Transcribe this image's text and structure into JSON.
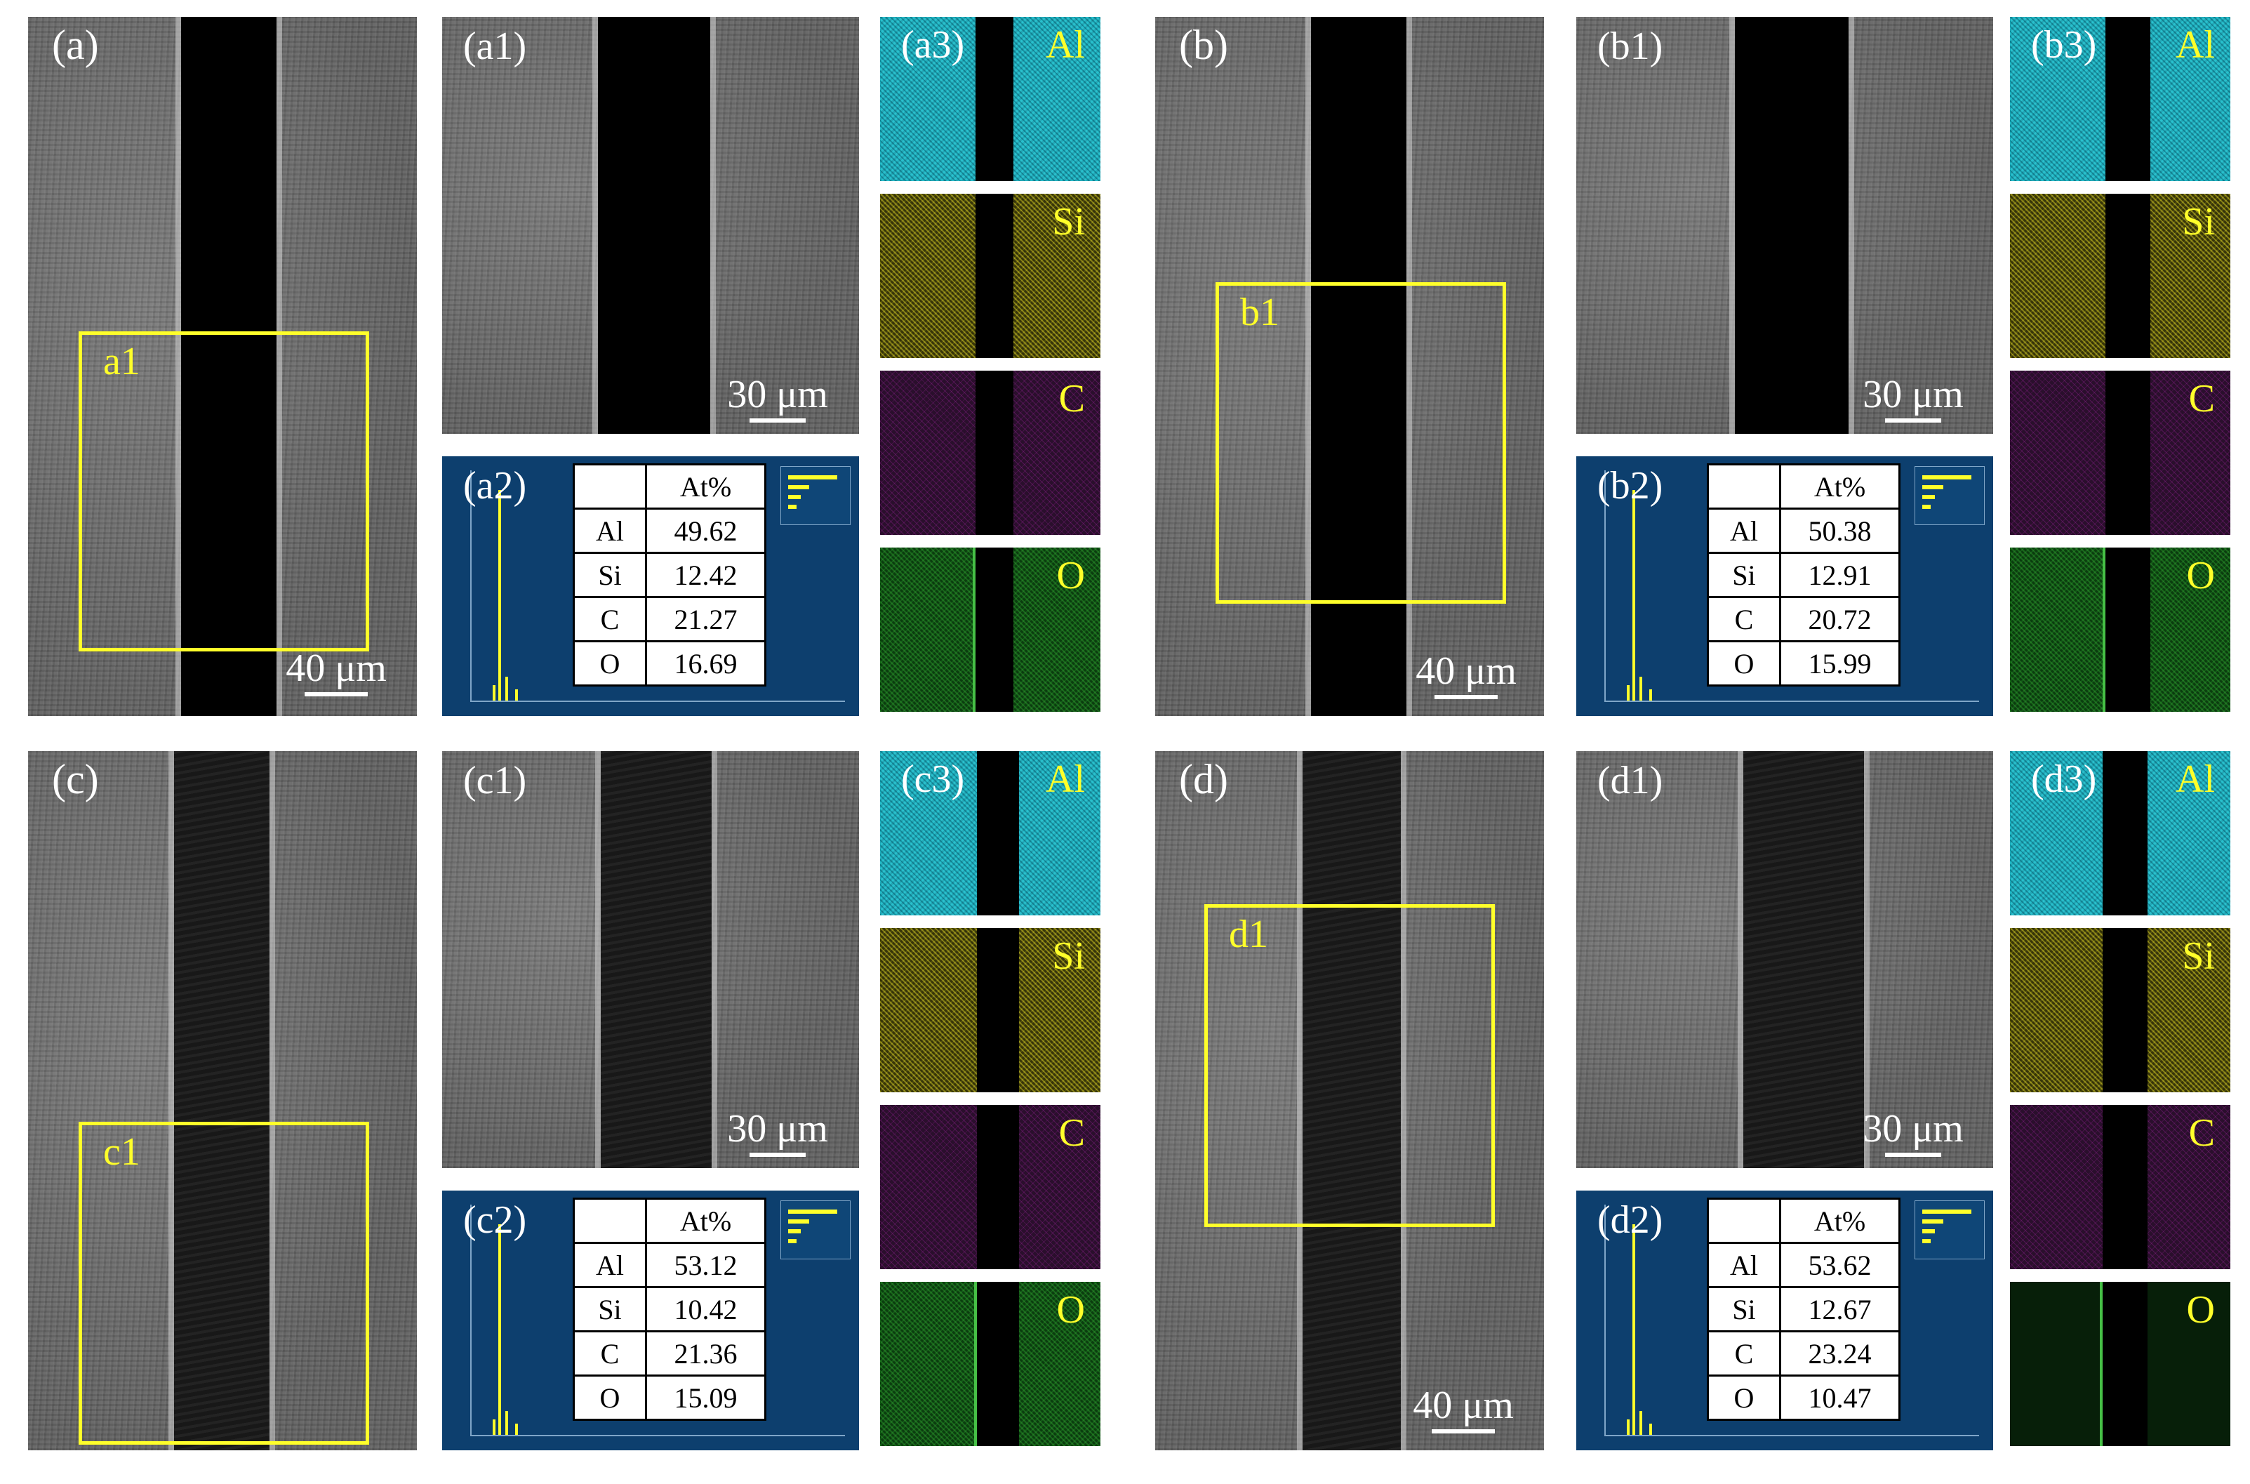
{
  "groups": [
    {
      "id": "a",
      "main_label": "(a)",
      "zoom_label": "a1",
      "main_scale": "40 μm",
      "sub_label": "(a1)",
      "sub_scale": "30 μm",
      "eds_label": "(a2)",
      "map_label": "(a3)",
      "table_header": "At%",
      "elements": [
        {
          "el": "Al",
          "val": "49.62"
        },
        {
          "el": "Si",
          "val": "12.42"
        },
        {
          "el": "C",
          "val": "21.27"
        },
        {
          "el": "O",
          "val": "16.69"
        }
      ],
      "map_elements": [
        "Al",
        "Si",
        "C",
        "O"
      ]
    },
    {
      "id": "b",
      "main_label": "(b)",
      "zoom_label": "b1",
      "main_scale": "40 μm",
      "sub_label": "(b1)",
      "sub_scale": "30 μm",
      "eds_label": "(b2)",
      "map_label": "(b3)",
      "table_header": "At%",
      "elements": [
        {
          "el": "Al",
          "val": "50.38"
        },
        {
          "el": "Si",
          "val": "12.91"
        },
        {
          "el": "C",
          "val": "20.72"
        },
        {
          "el": "O",
          "val": "15.99"
        }
      ],
      "map_elements": [
        "Al",
        "Si",
        "C",
        "O"
      ]
    },
    {
      "id": "c",
      "main_label": "(c)",
      "zoom_label": "c1",
      "main_scale": "",
      "sub_label": "(c1)",
      "sub_scale": "30 μm",
      "eds_label": "(c2)",
      "map_label": "(c3)",
      "table_header": "At%",
      "elements": [
        {
          "el": "Al",
          "val": "53.12"
        },
        {
          "el": "Si",
          "val": "10.42"
        },
        {
          "el": "C",
          "val": "21.36"
        },
        {
          "el": "O",
          "val": "15.09"
        }
      ],
      "map_elements": [
        "Al",
        "Si",
        "C",
        "O"
      ]
    },
    {
      "id": "d",
      "main_label": "(d)",
      "zoom_label": "d1",
      "main_scale": "40 μm",
      "sub_label": "(d1)",
      "sub_scale": "30 μm",
      "eds_label": "(d2)",
      "map_label": "(d3)",
      "table_header": "At%",
      "elements": [
        {
          "el": "Al",
          "val": "53.62"
        },
        {
          "el": "Si",
          "val": "12.67"
        },
        {
          "el": "C",
          "val": "23.24"
        },
        {
          "el": "O",
          "val": "10.47"
        }
      ],
      "map_elements": [
        "Al",
        "Si",
        "C",
        "O"
      ]
    }
  ],
  "colors": {
    "highlight": "#ffff2a",
    "al_map": "#1fb9c6",
    "si_map": "#d8cf25",
    "c_map": "#c82cc8",
    "o_map": "#3cc83c",
    "eds_bg": "#0d3f6e"
  }
}
